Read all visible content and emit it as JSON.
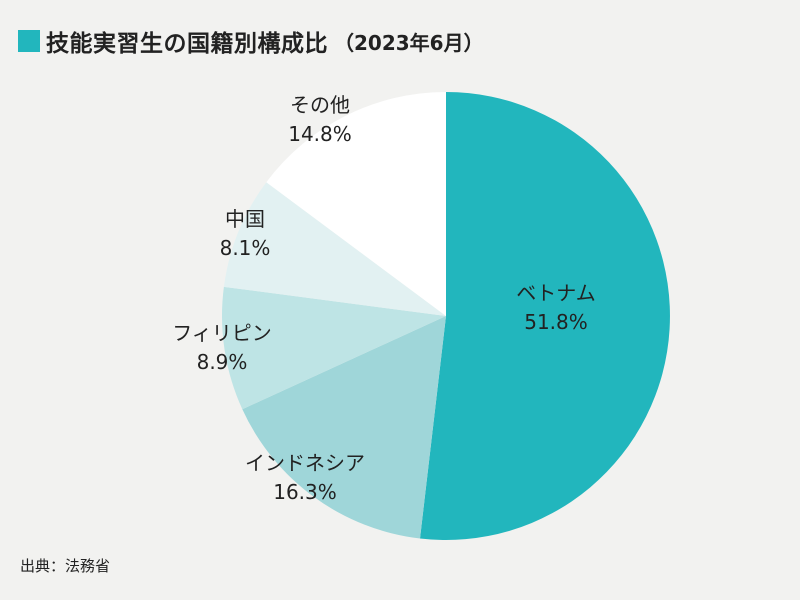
{
  "title": {
    "text": "技能実習生の国籍別構成比",
    "sub": "（2023年6月）"
  },
  "source": "出典：法務省",
  "chart_data": {
    "type": "pie",
    "unit": "%",
    "start_angle_deg": 0,
    "direction": "clockwise",
    "slices": [
      {
        "name": "ベトナム",
        "value": 51.8,
        "label": "51.8%",
        "color": "#22b6bd"
      },
      {
        "name": "インドネシア",
        "value": 16.3,
        "label": "16.3%",
        "color": "#9fd6d9"
      },
      {
        "name": "フィリピン",
        "value": 8.9,
        "label": "8.9%",
        "color": "#bee4e5"
      },
      {
        "name": "中国",
        "value": 8.1,
        "label": "8.1%",
        "color": "#e2f1f2"
      },
      {
        "name": "その他",
        "value": 14.8,
        "label": "14.8%",
        "color": "#ffffff"
      }
    ]
  }
}
